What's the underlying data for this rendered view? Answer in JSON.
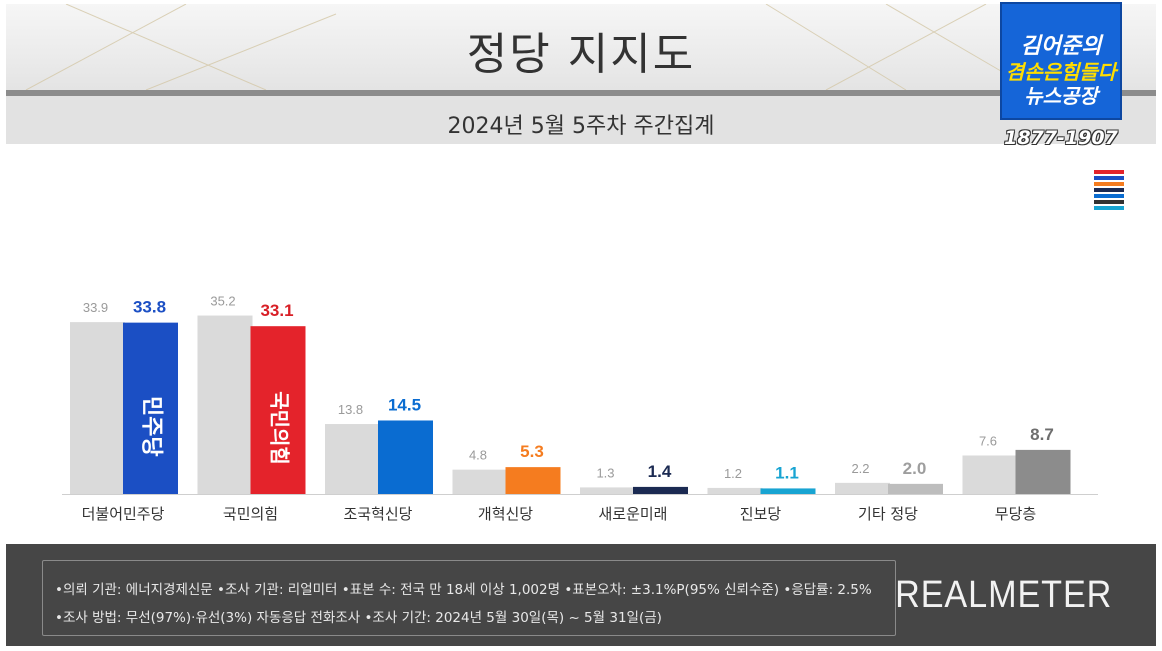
{
  "header": {
    "title": "정당 지지도",
    "subtitle": "2024년 5월 5주차 주간집계"
  },
  "channel_logo": {
    "line1": "김어준의",
    "line2": "겸손은힘들다",
    "line3": "뉴스공장",
    "phone": "1877-1907"
  },
  "colors": {
    "prev_bar": "#dadada",
    "democratic": "#1b4fc4",
    "ppp": "#e4232b",
    "rebuild": "#0a6cd1",
    "reform": "#f57c1f",
    "new_future": "#1b2a52",
    "progressive": "#18a4d2",
    "others": "#bdbdbd",
    "independent": "#8c8c8c",
    "footer_bg": "#464646"
  },
  "chart_data": {
    "type": "bar",
    "categories": [
      "더불어민주당",
      "국민의힘",
      "조국혁신당",
      "개혁신당",
      "새로운미래",
      "진보당",
      "기타 정당",
      "무당층"
    ],
    "series": [
      {
        "values": [
          33.9,
          35.2,
          13.8,
          4.8,
          1.3,
          1.2,
          2.2,
          7.6
        ]
      },
      {
        "values": [
          33.8,
          33.1,
          14.5,
          5.3,
          1.4,
          1.1,
          2.0,
          8.7
        ]
      }
    ],
    "prev_labels": [
      "33.9",
      "35.2",
      "13.8",
      "4.8",
      "1.3",
      "1.2",
      "2.2",
      "7.6"
    ],
    "curr_labels": [
      "33.8",
      "33.1",
      "14.5",
      "5.3",
      "1.4",
      "1.1",
      "2.0",
      "8.7"
    ],
    "curr_colors": [
      "#1b4fc4",
      "#e4232b",
      "#0a6cd1",
      "#f57c1f",
      "#1b2a52",
      "#18a4d2",
      "#bdbdbd",
      "#8c8c8c"
    ],
    "curr_label_colors": [
      "#1b4fc4",
      "#d81f26",
      "#0a6cd1",
      "#f57c1f",
      "#1b2a52",
      "#18a4d2",
      "#9e9e9e",
      "#6e6e6e"
    ],
    "bar_logos": [
      "민주당",
      "국민의힘"
    ],
    "ylim": [
      0,
      40
    ],
    "grid": false,
    "legend": "none"
  },
  "footer": {
    "note1": "•의뢰 기관: 에너지경제신문 •조사 기관: 리얼미터 •표본 수: 전국 만 18세 이상 1,002명 •표본오차: ±3.1%P(95% 신뢰수준) •응답률: 2.5%",
    "note2": "•조사 방법: 무선(97%)·유선(3%) 자동응답 전화조사 •조사 기간: 2024년 5월 30일(목) ~ 5월 31일(금)",
    "brand": "REALMETER"
  }
}
